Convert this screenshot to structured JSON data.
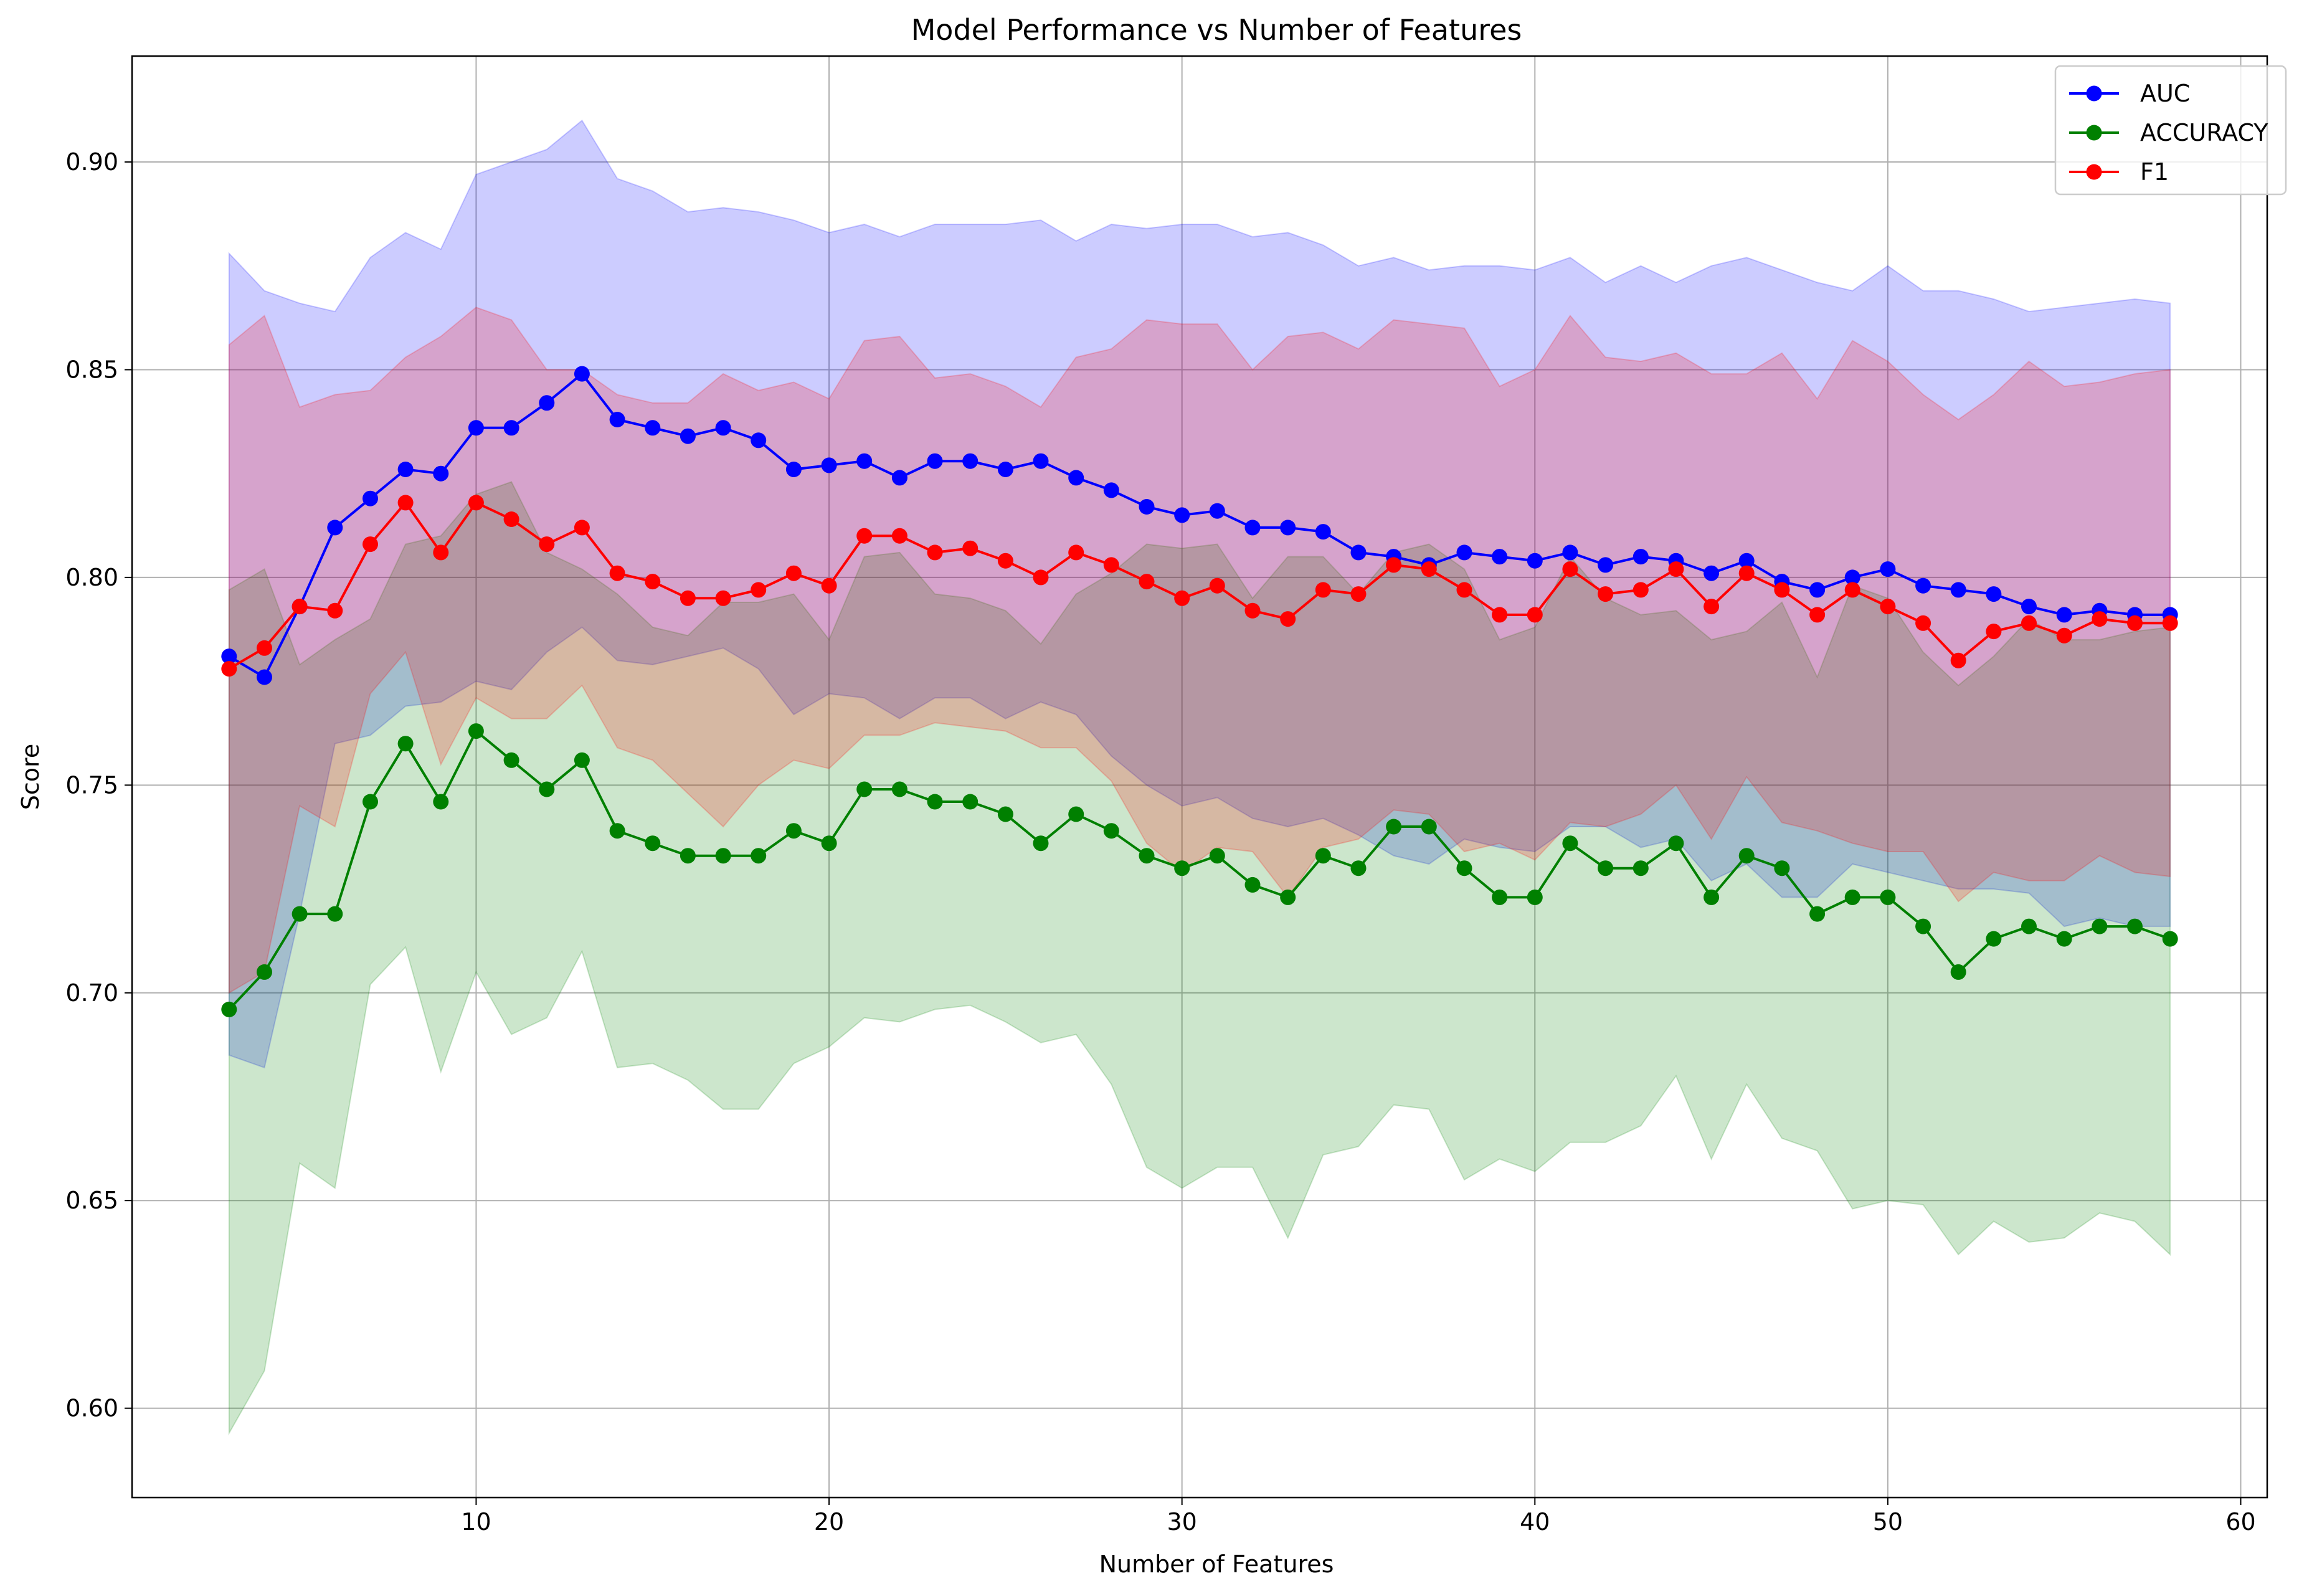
{
  "chart_data": {
    "type": "line",
    "title": "Model Performance vs Number of Features",
    "xlabel": "Number of Features",
    "ylabel": "Score",
    "xlim": [
      0.25,
      60.75
    ],
    "ylim": [
      0.5785,
      0.9255
    ],
    "xticks": [
      10,
      20,
      30,
      40,
      50,
      60
    ],
    "yticks": [
      0.6,
      0.65,
      0.7,
      0.75,
      0.8,
      0.85,
      0.9
    ],
    "ytick_labels": [
      "0.60",
      "0.65",
      "0.70",
      "0.75",
      "0.80",
      "0.85",
      "0.90"
    ],
    "grid": true,
    "legend_position": "top-right",
    "x": [
      3,
      4,
      5,
      6,
      7,
      8,
      9,
      10,
      11,
      12,
      13,
      14,
      15,
      16,
      17,
      18,
      19,
      20,
      21,
      22,
      23,
      24,
      25,
      26,
      27,
      28,
      29,
      30,
      31,
      32,
      33,
      34,
      35,
      36,
      37,
      38,
      39,
      40,
      41,
      42,
      43,
      44,
      45,
      46,
      47,
      48,
      49,
      50,
      51,
      52,
      53,
      54,
      55,
      56,
      57,
      58
    ],
    "series": [
      {
        "name": "AUC",
        "color": "#0000ff",
        "band_color": "#0000ff",
        "values": [
          0.781,
          0.776,
          0.793,
          0.812,
          0.819,
          0.826,
          0.825,
          0.836,
          0.836,
          0.842,
          0.849,
          0.838,
          0.836,
          0.834,
          0.836,
          0.833,
          0.826,
          0.827,
          0.828,
          0.824,
          0.828,
          0.828,
          0.826,
          0.828,
          0.824,
          0.821,
          0.817,
          0.815,
          0.816,
          0.812,
          0.812,
          0.811,
          0.806,
          0.805,
          0.803,
          0.806,
          0.805,
          0.804,
          0.806,
          0.803,
          0.805,
          0.804,
          0.801,
          0.804,
          0.799,
          0.797,
          0.8,
          0.802,
          0.798,
          0.797,
          0.796,
          0.793,
          0.791,
          0.792,
          0.791,
          0.791
        ],
        "upper": [
          0.878,
          0.869,
          0.866,
          0.864,
          0.877,
          0.883,
          0.879,
          0.897,
          0.9,
          0.903,
          0.91,
          0.896,
          0.893,
          0.888,
          0.889,
          0.888,
          0.886,
          0.883,
          0.885,
          0.882,
          0.885,
          0.885,
          0.885,
          0.886,
          0.881,
          0.885,
          0.884,
          0.885,
          0.885,
          0.882,
          0.883,
          0.88,
          0.875,
          0.877,
          0.874,
          0.875,
          0.875,
          0.874,
          0.877,
          0.871,
          0.875,
          0.871,
          0.875,
          0.877,
          0.874,
          0.871,
          0.869,
          0.875,
          0.869,
          0.869,
          0.867,
          0.864,
          0.865,
          0.866,
          0.867,
          0.866
        ],
        "lower": [
          0.685,
          0.682,
          0.719,
          0.76,
          0.762,
          0.769,
          0.77,
          0.775,
          0.773,
          0.782,
          0.788,
          0.78,
          0.779,
          0.781,
          0.783,
          0.778,
          0.767,
          0.772,
          0.771,
          0.766,
          0.771,
          0.771,
          0.766,
          0.77,
          0.767,
          0.757,
          0.75,
          0.745,
          0.747,
          0.742,
          0.74,
          0.742,
          0.738,
          0.733,
          0.731,
          0.737,
          0.735,
          0.734,
          0.74,
          0.74,
          0.735,
          0.737,
          0.727,
          0.731,
          0.723,
          0.723,
          0.731,
          0.729,
          0.727,
          0.725,
          0.725,
          0.724,
          0.716,
          0.718,
          0.716,
          0.716
        ]
      },
      {
        "name": "ACCURACY",
        "color": "#008000",
        "band_color": "#008000",
        "values": [
          0.696,
          0.705,
          0.719,
          0.719,
          0.746,
          0.76,
          0.746,
          0.763,
          0.756,
          0.749,
          0.756,
          0.739,
          0.736,
          0.733,
          0.733,
          0.733,
          0.739,
          0.736,
          0.749,
          0.749,
          0.746,
          0.746,
          0.743,
          0.736,
          0.743,
          0.739,
          0.733,
          0.73,
          0.733,
          0.726,
          0.723,
          0.733,
          0.73,
          0.74,
          0.74,
          0.73,
          0.723,
          0.723,
          0.736,
          0.73,
          0.73,
          0.736,
          0.723,
          0.733,
          0.73,
          0.719,
          0.723,
          0.723,
          0.716,
          0.705,
          0.713,
          0.716,
          0.713,
          0.716,
          0.716,
          0.713
        ],
        "upper": [
          0.797,
          0.802,
          0.779,
          0.785,
          0.79,
          0.808,
          0.81,
          0.82,
          0.823,
          0.806,
          0.802,
          0.796,
          0.788,
          0.786,
          0.794,
          0.794,
          0.796,
          0.785,
          0.805,
          0.806,
          0.796,
          0.795,
          0.792,
          0.784,
          0.796,
          0.801,
          0.808,
          0.807,
          0.808,
          0.795,
          0.805,
          0.805,
          0.796,
          0.806,
          0.808,
          0.802,
          0.785,
          0.788,
          0.805,
          0.795,
          0.791,
          0.792,
          0.785,
          0.787,
          0.794,
          0.776,
          0.798,
          0.795,
          0.782,
          0.774,
          0.781,
          0.79,
          0.785,
          0.785,
          0.787,
          0.788
        ],
        "lower": [
          0.594,
          0.609,
          0.659,
          0.653,
          0.702,
          0.711,
          0.681,
          0.705,
          0.69,
          0.694,
          0.71,
          0.682,
          0.683,
          0.679,
          0.672,
          0.672,
          0.683,
          0.687,
          0.694,
          0.693,
          0.696,
          0.697,
          0.693,
          0.688,
          0.69,
          0.678,
          0.658,
          0.653,
          0.658,
          0.658,
          0.641,
          0.661,
          0.663,
          0.673,
          0.672,
          0.655,
          0.66,
          0.657,
          0.664,
          0.664,
          0.668,
          0.68,
          0.66,
          0.678,
          0.665,
          0.662,
          0.648,
          0.65,
          0.649,
          0.637,
          0.645,
          0.64,
          0.641,
          0.647,
          0.645,
          0.637
        ]
      },
      {
        "name": "F1",
        "color": "#ff0000",
        "band_color": "#ff0000",
        "values": [
          0.778,
          0.783,
          0.793,
          0.792,
          0.808,
          0.818,
          0.806,
          0.818,
          0.814,
          0.808,
          0.812,
          0.801,
          0.799,
          0.795,
          0.795,
          0.797,
          0.801,
          0.798,
          0.81,
          0.81,
          0.806,
          0.807,
          0.804,
          0.8,
          0.806,
          0.803,
          0.799,
          0.795,
          0.798,
          0.792,
          0.79,
          0.797,
          0.796,
          0.803,
          0.802,
          0.797,
          0.791,
          0.791,
          0.802,
          0.796,
          0.797,
          0.802,
          0.793,
          0.801,
          0.797,
          0.791,
          0.797,
          0.793,
          0.789,
          0.78,
          0.787,
          0.789,
          0.786,
          0.79,
          0.789,
          0.789
        ],
        "upper": [
          0.856,
          0.863,
          0.841,
          0.844,
          0.845,
          0.853,
          0.858,
          0.865,
          0.862,
          0.85,
          0.85,
          0.844,
          0.842,
          0.842,
          0.849,
          0.845,
          0.847,
          0.843,
          0.857,
          0.858,
          0.848,
          0.849,
          0.846,
          0.841,
          0.853,
          0.855,
          0.862,
          0.861,
          0.861,
          0.85,
          0.858,
          0.859,
          0.855,
          0.862,
          0.861,
          0.86,
          0.846,
          0.85,
          0.863,
          0.853,
          0.852,
          0.854,
          0.849,
          0.849,
          0.854,
          0.843,
          0.857,
          0.852,
          0.844,
          0.838,
          0.844,
          0.852,
          0.846,
          0.847,
          0.849,
          0.85
        ],
        "lower": [
          0.7,
          0.705,
          0.745,
          0.74,
          0.772,
          0.782,
          0.755,
          0.771,
          0.766,
          0.766,
          0.774,
          0.759,
          0.756,
          0.748,
          0.74,
          0.75,
          0.756,
          0.754,
          0.762,
          0.762,
          0.765,
          0.764,
          0.763,
          0.759,
          0.759,
          0.751,
          0.736,
          0.729,
          0.735,
          0.734,
          0.723,
          0.735,
          0.737,
          0.744,
          0.743,
          0.734,
          0.736,
          0.732,
          0.741,
          0.74,
          0.743,
          0.75,
          0.737,
          0.752,
          0.741,
          0.739,
          0.736,
          0.734,
          0.734,
          0.722,
          0.729,
          0.727,
          0.727,
          0.733,
          0.729,
          0.728
        ]
      }
    ]
  }
}
